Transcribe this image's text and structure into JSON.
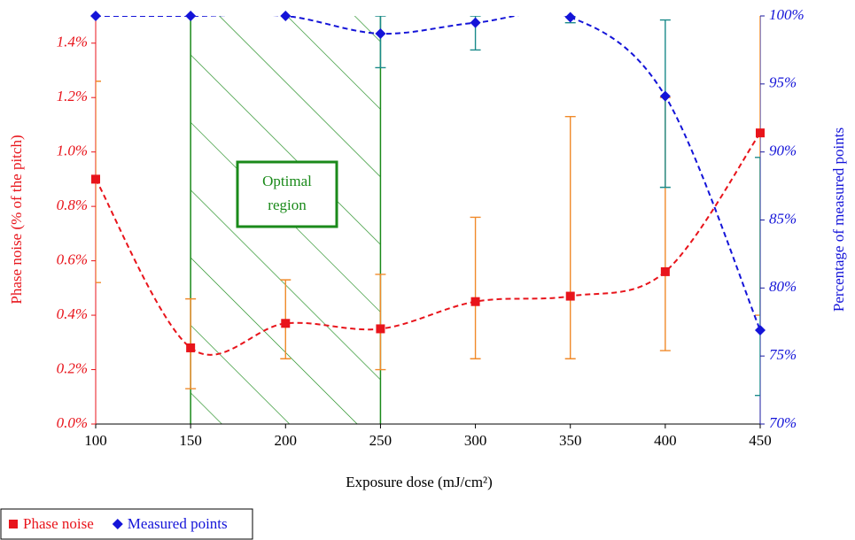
{
  "chart_data": {
    "type": "errorbar-line",
    "x_label": "Exposure dose (mJ/cm²)",
    "y_label": "Phase noise (% of the pitch)",
    "y2_label": "Percentage of measured points",
    "x": [
      100,
      150,
      200,
      250,
      300,
      350,
      400,
      450
    ],
    "xlim": [
      100,
      450
    ],
    "xticks": [
      100,
      150,
      200,
      250,
      300,
      350,
      400,
      450
    ],
    "ylim": [
      0,
      1.5
    ],
    "yticks": [
      {
        "value": 0,
        "label": "0.0%"
      },
      {
        "value": 0.2,
        "label": "0.2%"
      },
      {
        "value": 0.4,
        "label": "0.4%"
      },
      {
        "value": 0.6,
        "label": "0.6%"
      },
      {
        "value": 0.8,
        "label": "0.8%"
      },
      {
        "value": 1.0,
        "label": "1.0%"
      },
      {
        "value": 1.2,
        "label": "1.2%"
      },
      {
        "value": 1.4,
        "label": "1.4%"
      }
    ],
    "y2lim": [
      70,
      100
    ],
    "y2ticks": [
      {
        "value": 70,
        "label": "70%"
      },
      {
        "value": 75,
        "label": "75%"
      },
      {
        "value": 80,
        "label": "80%"
      },
      {
        "value": 85,
        "label": "85%"
      },
      {
        "value": 90,
        "label": "90%"
      },
      {
        "value": 95,
        "label": "95%"
      },
      {
        "value": 100,
        "label": "100%"
      }
    ],
    "series": [
      {
        "name": "Phase noise",
        "color": "#e8141b",
        "error_color": "#f08a2a",
        "marker": "square",
        "values": [
          0.9,
          0.28,
          0.37,
          0.35,
          0.45,
          0.47,
          0.56,
          1.07
        ],
        "errors_minus": [
          0.38,
          0.15,
          0.13,
          0.15,
          0.21,
          0.23,
          0.29,
          0.67
        ],
        "errors_plus": [
          0.36,
          0.18,
          0.16,
          0.2,
          0.31,
          0.66,
          0.64,
          0.7
        ]
      },
      {
        "name": "Measured points",
        "color": "#1414d8",
        "error_color": "#1a8a8a",
        "marker": "diamond",
        "axis": "y2",
        "values": [
          100,
          100,
          100,
          98.7,
          99.5,
          99.9,
          94.1,
          76.9
        ],
        "errors_minus": [
          null,
          null,
          null,
          2.5,
          2.0,
          0.4,
          6.7,
          4.8
        ],
        "errors_plus": [
          null,
          null,
          null,
          1.3,
          0.5,
          0.1,
          5.6,
          12.7
        ]
      }
    ],
    "region": {
      "x": [
        150,
        250
      ],
      "label": [
        "Optimal",
        "region"
      ],
      "color": "#1a8a1a"
    }
  }
}
